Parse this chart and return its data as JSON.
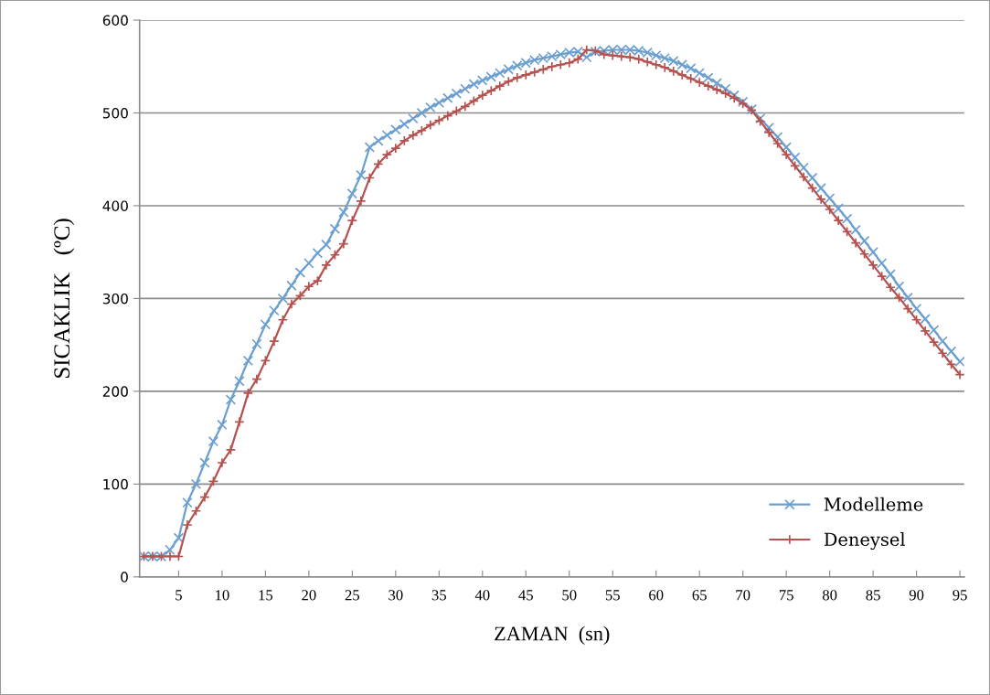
{
  "chart_data": {
    "type": "line",
    "xlabel": "ZAMAN  (sn)",
    "ylabel": "SICAKLIK   (ºC)",
    "x": [
      1,
      2,
      3,
      4,
      5,
      6,
      7,
      8,
      9,
      10,
      11,
      12,
      13,
      14,
      15,
      16,
      17,
      18,
      19,
      20,
      21,
      22,
      23,
      24,
      25,
      26,
      27,
      28,
      29,
      30,
      31,
      32,
      33,
      34,
      35,
      36,
      37,
      38,
      39,
      40,
      41,
      42,
      43,
      44,
      45,
      46,
      47,
      48,
      49,
      50,
      51,
      52,
      53,
      54,
      55,
      56,
      57,
      58,
      59,
      60,
      61,
      62,
      63,
      64,
      65,
      66,
      67,
      68,
      69,
      70,
      71,
      72,
      73,
      74,
      75,
      76,
      77,
      78,
      79,
      80,
      81,
      82,
      83,
      84,
      85,
      86,
      87,
      88,
      89,
      90,
      91,
      92,
      93,
      94,
      95
    ],
    "series": [
      {
        "name": "Modelleme",
        "color": "#6a9fd0",
        "marker": "cross",
        "values": [
          22,
          22,
          22,
          29,
          42,
          80,
          100,
          123,
          146,
          164,
          191,
          211,
          233,
          251,
          272,
          287,
          300,
          314,
          328,
          338,
          349,
          358,
          375,
          393,
          413,
          433,
          463,
          470,
          476,
          482,
          488,
          494,
          500,
          506,
          511,
          516,
          521,
          526,
          531,
          535,
          539,
          543,
          547,
          551,
          554,
          557,
          559,
          561,
          563,
          565,
          566,
          560,
          566,
          567,
          568,
          568,
          568,
          567,
          565,
          562,
          559,
          556,
          552,
          548,
          543,
          538,
          532,
          526,
          519,
          512,
          504,
          494,
          484,
          474,
          463,
          452,
          441,
          430,
          419,
          408,
          397,
          386,
          374,
          362,
          350,
          338,
          326,
          313,
          301,
          289,
          278,
          266,
          254,
          243,
          232
        ]
      },
      {
        "name": "Deneysel",
        "color": "#b5524f",
        "marker": "plus",
        "values": [
          22,
          22,
          22,
          22,
          22,
          56,
          71,
          86,
          103,
          123,
          137,
          167,
          198,
          213,
          233,
          254,
          277,
          294,
          303,
          313,
          319,
          336,
          347,
          359,
          384,
          405,
          430,
          445,
          455,
          462,
          470,
          476,
          481,
          487,
          492,
          497,
          502,
          507,
          513,
          519,
          524,
          529,
          534,
          538,
          541,
          544,
          547,
          550,
          552,
          554,
          558,
          568,
          567,
          563,
          562,
          561,
          560,
          558,
          555,
          552,
          549,
          545,
          541,
          537,
          533,
          529,
          525,
          521,
          516,
          510,
          503,
          491,
          479,
          467,
          455,
          443,
          431,
          419,
          407,
          396,
          384,
          372,
          360,
          348,
          336,
          324,
          312,
          301,
          289,
          277,
          265,
          253,
          241,
          229,
          218
        ]
      }
    ],
    "xlim": [
      0.5,
      95.5
    ],
    "xticks": [
      5,
      10,
      15,
      20,
      25,
      30,
      35,
      40,
      45,
      50,
      55,
      60,
      65,
      70,
      75,
      80,
      85,
      90,
      95
    ],
    "ylim": [
      0,
      600
    ],
    "yticks": [
      0,
      100,
      200,
      300,
      400,
      500,
      600
    ],
    "grid": "y",
    "legend": "bottom right",
    "line_style": "solid"
  }
}
